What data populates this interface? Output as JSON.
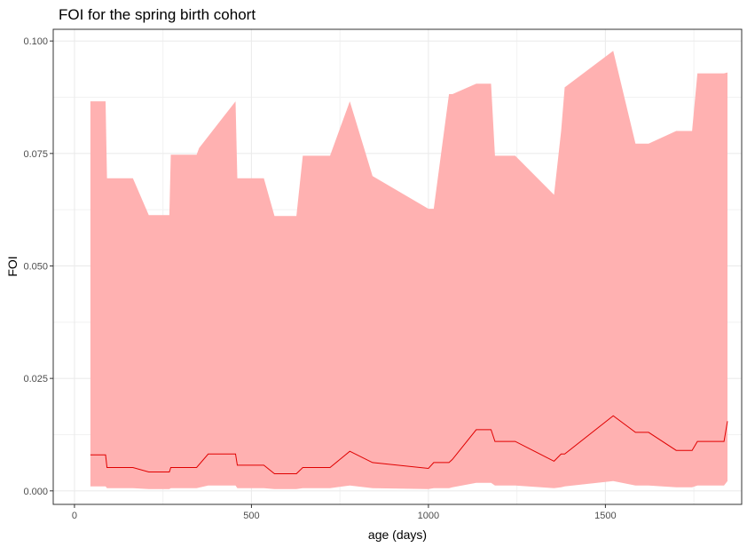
{
  "chart_data": {
    "type": "area",
    "title": "FOI for the spring birth cohort",
    "xlabel": "age (days)",
    "ylabel": "FOI",
    "xlim": [
      -60,
      1885
    ],
    "ylim": [
      -0.003,
      0.1026
    ],
    "x_ticks": [
      0,
      500,
      1000,
      1500
    ],
    "y_ticks": [
      0.0,
      0.025,
      0.05,
      0.075,
      0.1
    ],
    "x_tick_labels": [
      "0",
      "500",
      "1000",
      "1500"
    ],
    "y_tick_labels": [
      "0.000",
      "0.025",
      "0.050",
      "0.075",
      "0.100"
    ],
    "grid": true,
    "colors": {
      "ribbon": "#ffb1b1",
      "line": "#e00000",
      "grid": "#ebebeb",
      "panel_border": "#333333"
    },
    "series": [
      {
        "kind": "upper-bound",
        "x": [
          45,
          88,
          92,
          165,
          210,
          268,
          272,
          345,
          352,
          455,
          460,
          535,
          565,
          627,
          645,
          722,
          778,
          842,
          1000,
          1015,
          1058,
          1068,
          1135,
          1177,
          1188,
          1245,
          1355,
          1375,
          1385,
          1522,
          1585,
          1622,
          1700,
          1745,
          1760,
          1835,
          1845
        ],
        "y": [
          0.0866,
          0.0866,
          0.0695,
          0.0695,
          0.0613,
          0.0613,
          0.0747,
          0.0747,
          0.0762,
          0.0866,
          0.0695,
          0.0695,
          0.0611,
          0.0611,
          0.0745,
          0.0745,
          0.0866,
          0.07,
          0.0627,
          0.0627,
          0.0882,
          0.0882,
          0.0905,
          0.0905,
          0.0745,
          0.0745,
          0.0658,
          0.08,
          0.0897,
          0.0978,
          0.0772,
          0.0772,
          0.08,
          0.08,
          0.0928,
          0.0928,
          0.093
        ]
      },
      {
        "kind": "mean",
        "x": [
          45,
          88,
          92,
          165,
          210,
          268,
          272,
          345,
          378,
          455,
          460,
          535,
          565,
          627,
          645,
          722,
          778,
          842,
          1000,
          1015,
          1058,
          1068,
          1135,
          1177,
          1188,
          1245,
          1355,
          1375,
          1385,
          1522,
          1585,
          1622,
          1700,
          1745,
          1760,
          1835,
          1845
        ],
        "y": [
          0.008,
          0.008,
          0.0052,
          0.0052,
          0.0042,
          0.0042,
          0.0052,
          0.0052,
          0.0082,
          0.0082,
          0.0057,
          0.0057,
          0.0038,
          0.0038,
          0.0052,
          0.0052,
          0.0088,
          0.0063,
          0.005,
          0.0063,
          0.0063,
          0.007,
          0.0136,
          0.0136,
          0.011,
          0.011,
          0.0066,
          0.0082,
          0.0082,
          0.0167,
          0.013,
          0.013,
          0.009,
          0.009,
          0.011,
          0.011,
          0.0155
        ]
      },
      {
        "kind": "lower-bound",
        "x": [
          45,
          88,
          92,
          165,
          210,
          268,
          272,
          345,
          378,
          455,
          460,
          535,
          565,
          627,
          645,
          722,
          778,
          842,
          1000,
          1015,
          1058,
          1068,
          1135,
          1177,
          1188,
          1245,
          1355,
          1375,
          1385,
          1522,
          1585,
          1622,
          1700,
          1745,
          1760,
          1835,
          1845
        ],
        "y": [
          0.001,
          0.001,
          0.0006,
          0.0006,
          0.0004,
          0.0004,
          0.0006,
          0.0006,
          0.0012,
          0.0012,
          0.0006,
          0.0006,
          0.0004,
          0.0004,
          0.0006,
          0.0006,
          0.0012,
          0.0006,
          0.0004,
          0.0006,
          0.0006,
          0.0008,
          0.0018,
          0.0018,
          0.0012,
          0.0012,
          0.0006,
          0.0008,
          0.001,
          0.0022,
          0.0012,
          0.0012,
          0.0008,
          0.0008,
          0.0012,
          0.0012,
          0.0022
        ]
      }
    ]
  }
}
